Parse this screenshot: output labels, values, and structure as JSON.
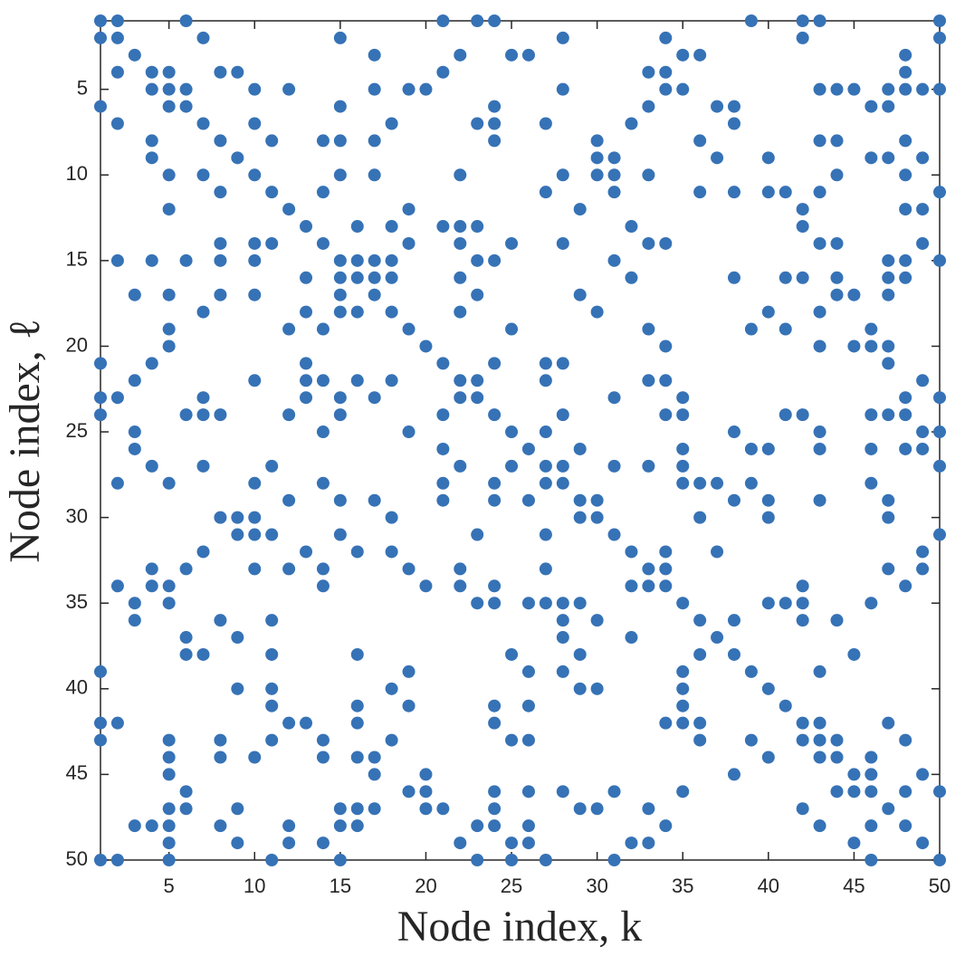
{
  "chart_data": {
    "type": "scatter",
    "xlabel": "Node index, k",
    "ylabel": "Node index, ℓ",
    "xlim": [
      1,
      50
    ],
    "ylim": [
      1,
      50
    ],
    "y_reversed": true,
    "xticks": [
      5,
      10,
      15,
      20,
      25,
      30,
      35,
      40,
      45,
      50
    ],
    "yticks": [
      5,
      10,
      15,
      20,
      25,
      30,
      35,
      40,
      45,
      50
    ],
    "grid": false,
    "series": [
      {
        "color": "#3672b6",
        "x": [
          1,
          2,
          6,
          21,
          23,
          24,
          39,
          42,
          43,
          50,
          1,
          2,
          7,
          15,
          28,
          34,
          42,
          50,
          3,
          17,
          22,
          25,
          26,
          35,
          36,
          48,
          2,
          4,
          5,
          8,
          9,
          21,
          33,
          34,
          48,
          4,
          5,
          6,
          10,
          12,
          17,
          19,
          20,
          28,
          34,
          35,
          43,
          44,
          45,
          47,
          48,
          49,
          50,
          1,
          5,
          6,
          15,
          24,
          33,
          37,
          38,
          46,
          47,
          2,
          7,
          10,
          18,
          23,
          24,
          27,
          32,
          38,
          4,
          8,
          11,
          14,
          15,
          17,
          24,
          30,
          36,
          43,
          44,
          48,
          4,
          9,
          30,
          31,
          37,
          40,
          46,
          47,
          49,
          5,
          7,
          10,
          15,
          17,
          22,
          28,
          30,
          31,
          33,
          44,
          48,
          8,
          11,
          14,
          27,
          31,
          36,
          38,
          40,
          41,
          43,
          50,
          5,
          12,
          19,
          29,
          42,
          48,
          49,
          13,
          16,
          18,
          21,
          22,
          23,
          32,
          42,
          8,
          10,
          11,
          14,
          19,
          22,
          25,
          28,
          33,
          34,
          43,
          44,
          49,
          2,
          4,
          6,
          8,
          10,
          15,
          16,
          17,
          18,
          23,
          24,
          31,
          47,
          48,
          50,
          13,
          15,
          16,
          17,
          18,
          22,
          32,
          38,
          41,
          42,
          44,
          47,
          48,
          3,
          5,
          8,
          10,
          15,
          17,
          23,
          29,
          44,
          45,
          47,
          7,
          13,
          15,
          16,
          18,
          22,
          30,
          40,
          43,
          5,
          12,
          14,
          19,
          25,
          33,
          39,
          41,
          46,
          5,
          20,
          34,
          43,
          45,
          46,
          47,
          1,
          4,
          13,
          21,
          24,
          27,
          28,
          47,
          3,
          10,
          13,
          14,
          16,
          18,
          22,
          23,
          27,
          33,
          34,
          49,
          1,
          2,
          7,
          13,
          15,
          17,
          22,
          23,
          31,
          35,
          48,
          50,
          1,
          6,
          7,
          8,
          12,
          15,
          21,
          24,
          28,
          34,
          35,
          41,
          42,
          46,
          47,
          48,
          3,
          14,
          19,
          25,
          27,
          38,
          43,
          49,
          50,
          3,
          21,
          26,
          29,
          35,
          39,
          40,
          43,
          46,
          48,
          49,
          4,
          7,
          11,
          22,
          25,
          27,
          28,
          31,
          33,
          35,
          50,
          2,
          5,
          10,
          14,
          21,
          24,
          27,
          28,
          35,
          36,
          37,
          39,
          46,
          12,
          15,
          17,
          21,
          24,
          26,
          29,
          30,
          38,
          40,
          43,
          47,
          8,
          9,
          10,
          18,
          29,
          30,
          36,
          40,
          47,
          9,
          10,
          11,
          15,
          23,
          27,
          31,
          50,
          7,
          13,
          16,
          18,
          32,
          34,
          37,
          49,
          4,
          6,
          10,
          12,
          14,
          19,
          22,
          27,
          33,
          34,
          47,
          49,
          2,
          4,
          5,
          14,
          20,
          22,
          24,
          32,
          33,
          34,
          42,
          48,
          3,
          5,
          23,
          24,
          26,
          27,
          28,
          29,
          35,
          40,
          41,
          42,
          46,
          3,
          8,
          11,
          28,
          30,
          36,
          38,
          42,
          44,
          6,
          9,
          28,
          32,
          37,
          6,
          7,
          11,
          16,
          25,
          29,
          36,
          38,
          45,
          1,
          19,
          26,
          28,
          35,
          39,
          43,
          9,
          11,
          18,
          29,
          30,
          35,
          40,
          11,
          16,
          19,
          24,
          26,
          35,
          41,
          1,
          2,
          12,
          13,
          16,
          24,
          34,
          35,
          36,
          42,
          43,
          47,
          1,
          5,
          8,
          11,
          14,
          18,
          25,
          26,
          36,
          39,
          42,
          43,
          44,
          48,
          5,
          8,
          10,
          14,
          16,
          17,
          40,
          43,
          44,
          46,
          5,
          17,
          20,
          38,
          45,
          46,
          49,
          6,
          19,
          20,
          24,
          26,
          28,
          31,
          35,
          44,
          45,
          46,
          48,
          50,
          5,
          6,
          9,
          15,
          16,
          17,
          20,
          21,
          24,
          29,
          30,
          33,
          42,
          47,
          3,
          4,
          5,
          8,
          12,
          15,
          16,
          23,
          24,
          26,
          34,
          43,
          46,
          48,
          5,
          9,
          12,
          14,
          22,
          25,
          26,
          32,
          33,
          45,
          49,
          1,
          2,
          5,
          11,
          15,
          23,
          25,
          27,
          31,
          46,
          50
        ],
        "values": [
          1,
          1,
          1,
          1,
          1,
          1,
          1,
          1,
          1,
          1,
          2,
          2,
          2,
          2,
          2,
          2,
          2,
          2,
          3,
          3,
          3,
          3,
          3,
          3,
          3,
          3,
          4,
          4,
          4,
          4,
          4,
          4,
          4,
          4,
          4,
          5,
          5,
          5,
          5,
          5,
          5,
          5,
          5,
          5,
          5,
          5,
          5,
          5,
          5,
          5,
          5,
          5,
          5,
          6,
          6,
          6,
          6,
          6,
          6,
          6,
          6,
          6,
          6,
          7,
          7,
          7,
          7,
          7,
          7,
          7,
          7,
          7,
          8,
          8,
          8,
          8,
          8,
          8,
          8,
          8,
          8,
          8,
          8,
          8,
          9,
          9,
          9,
          9,
          9,
          9,
          9,
          9,
          9,
          10,
          10,
          10,
          10,
          10,
          10,
          10,
          10,
          10,
          10,
          10,
          10,
          11,
          11,
          11,
          11,
          11,
          11,
          11,
          11,
          11,
          11,
          11,
          12,
          12,
          12,
          12,
          12,
          12,
          12,
          13,
          13,
          13,
          13,
          13,
          13,
          13,
          13,
          14,
          14,
          14,
          14,
          14,
          14,
          14,
          14,
          14,
          14,
          14,
          14,
          14,
          15,
          15,
          15,
          15,
          15,
          15,
          15,
          15,
          15,
          15,
          15,
          15,
          15,
          15,
          15,
          16,
          16,
          16,
          16,
          16,
          16,
          16,
          16,
          16,
          16,
          16,
          16,
          16,
          17,
          17,
          17,
          17,
          17,
          17,
          17,
          17,
          17,
          17,
          17,
          18,
          18,
          18,
          18,
          18,
          18,
          18,
          18,
          18,
          19,
          19,
          19,
          19,
          19,
          19,
          19,
          19,
          19,
          20,
          20,
          20,
          20,
          20,
          20,
          20,
          21,
          21,
          21,
          21,
          21,
          21,
          21,
          21,
          22,
          22,
          22,
          22,
          22,
          22,
          22,
          22,
          22,
          22,
          22,
          22,
          23,
          23,
          23,
          23,
          23,
          23,
          23,
          23,
          23,
          23,
          23,
          23,
          24,
          24,
          24,
          24,
          24,
          24,
          24,
          24,
          24,
          24,
          24,
          24,
          24,
          24,
          24,
          24,
          25,
          25,
          25,
          25,
          25,
          25,
          25,
          25,
          25,
          26,
          26,
          26,
          26,
          26,
          26,
          26,
          26,
          26,
          26,
          26,
          27,
          27,
          27,
          27,
          27,
          27,
          27,
          27,
          27,
          27,
          27,
          28,
          28,
          28,
          28,
          28,
          28,
          28,
          28,
          28,
          28,
          28,
          28,
          28,
          29,
          29,
          29,
          29,
          29,
          29,
          29,
          29,
          29,
          29,
          29,
          29,
          30,
          30,
          30,
          30,
          30,
          30,
          30,
          30,
          30,
          31,
          31,
          31,
          31,
          31,
          31,
          31,
          31,
          32,
          32,
          32,
          32,
          32,
          32,
          32,
          32,
          33,
          33,
          33,
          33,
          33,
          33,
          33,
          33,
          33,
          33,
          33,
          33,
          34,
          34,
          34,
          34,
          34,
          34,
          34,
          34,
          34,
          34,
          34,
          34,
          35,
          35,
          35,
          35,
          35,
          35,
          35,
          35,
          35,
          35,
          35,
          35,
          35,
          36,
          36,
          36,
          36,
          36,
          36,
          36,
          36,
          36,
          37,
          37,
          37,
          37,
          37,
          38,
          38,
          38,
          38,
          38,
          38,
          38,
          38,
          38,
          39,
          39,
          39,
          39,
          39,
          39,
          39,
          40,
          40,
          40,
          40,
          40,
          40,
          40,
          41,
          41,
          41,
          41,
          41,
          41,
          41,
          42,
          42,
          42,
          42,
          42,
          42,
          42,
          42,
          42,
          42,
          42,
          42,
          43,
          43,
          43,
          43,
          43,
          43,
          43,
          43,
          43,
          43,
          43,
          43,
          43,
          43,
          44,
          44,
          44,
          44,
          44,
          44,
          44,
          44,
          44,
          44,
          45,
          45,
          45,
          45,
          45,
          45,
          45,
          46,
          46,
          46,
          46,
          46,
          46,
          46,
          46,
          46,
          46,
          46,
          46,
          46,
          47,
          47,
          47,
          47,
          47,
          47,
          47,
          47,
          47,
          47,
          47,
          47,
          47,
          47,
          48,
          48,
          48,
          48,
          48,
          48,
          48,
          48,
          48,
          48,
          48,
          48,
          48,
          48,
          49,
          49,
          49,
          49,
          49,
          49,
          49,
          49,
          49,
          49,
          49,
          50,
          50,
          50,
          50,
          50,
          50,
          50,
          50,
          50,
          50,
          50
        ]
      }
    ]
  }
}
